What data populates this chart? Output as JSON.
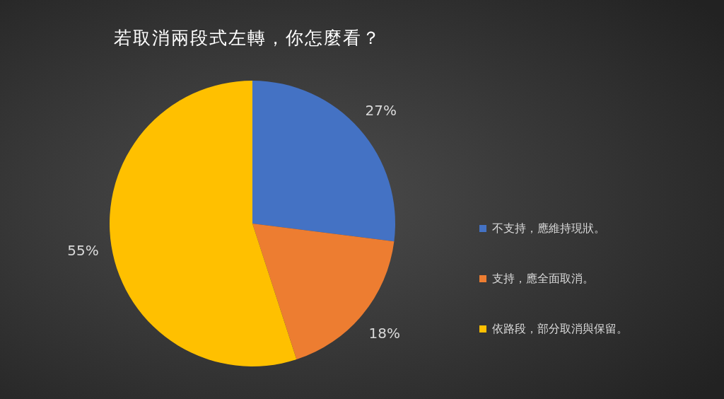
{
  "chart_data": {
    "type": "pie",
    "title": "若取消兩段式左轉，你怎麼看？",
    "categories": [
      "不支持，應維持現狀。",
      "支持，應全面取消。",
      "依路段，部分取消與保留。"
    ],
    "values": [
      27,
      18,
      55
    ],
    "colors": [
      "#4472c4",
      "#ed7d31",
      "#ffc000"
    ],
    "value_labels": [
      "27%",
      "18%",
      "55%"
    ],
    "legend": "right"
  }
}
